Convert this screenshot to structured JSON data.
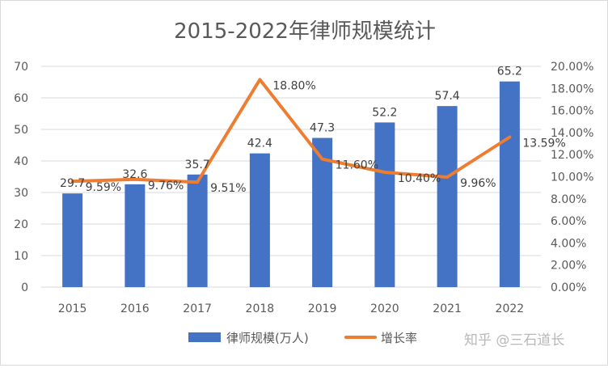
{
  "chart_data": {
    "type": "bar",
    "title": "2015-2022年律师规模统计",
    "categories": [
      "2015",
      "2016",
      "2017",
      "2018",
      "2019",
      "2020",
      "2021",
      "2022"
    ],
    "series": [
      {
        "name": "律师规模(万人)",
        "type": "bar",
        "axis": "left",
        "values": [
          29.7,
          32.6,
          35.7,
          42.4,
          47.3,
          52.2,
          57.4,
          65.2
        ],
        "labels": [
          "29.7",
          "32.6",
          "35.7",
          "42.4",
          "47.3",
          "52.2",
          "57.4",
          "65.2"
        ],
        "color": "#4472C4"
      },
      {
        "name": "增长率",
        "type": "line",
        "axis": "right",
        "values": [
          9.59,
          9.76,
          9.51,
          18.8,
          11.6,
          10.4,
          9.96,
          13.59
        ],
        "labels": [
          "9.59%",
          "9.76%",
          "9.51%",
          "18.80%",
          "11.60%",
          "10.40%",
          "9.96%",
          "13.59%"
        ],
        "color": "#ED7D31"
      }
    ],
    "ylim": [
      0,
      70
    ],
    "yticks": [
      "0",
      "10",
      "20",
      "30",
      "40",
      "50",
      "60",
      "70"
    ],
    "y2lim": [
      0,
      20
    ],
    "y2ticks": [
      "0.00%",
      "2.00%",
      "4.00%",
      "6.00%",
      "8.00%",
      "10.00%",
      "12.00%",
      "14.00%",
      "16.00%",
      "18.00%",
      "20.00%"
    ],
    "grid": true,
    "legend": "bottom"
  },
  "watermark": "知乎 @三石道长"
}
